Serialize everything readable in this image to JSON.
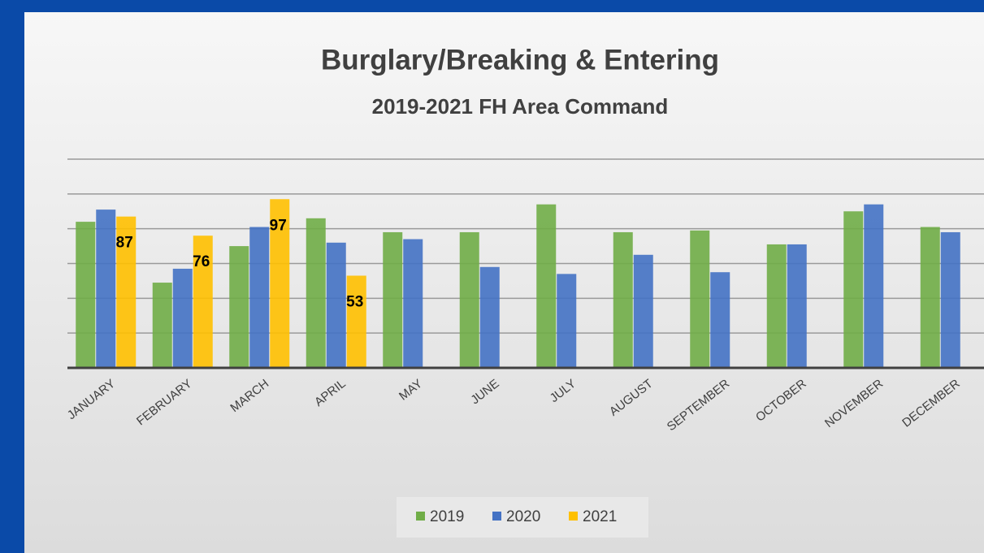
{
  "chart_data": {
    "type": "bar",
    "title": "Burglary/Breaking & Entering",
    "subtitle": "2019-2021 FH Area Command",
    "categories": [
      "JANUARY",
      "FEBRUARY",
      "MARCH",
      "APRIL",
      "MAY",
      "JUNE",
      "JULY",
      "AUGUST",
      "SEPTEMBER",
      "OCTOBER",
      "NOVEMBER",
      "DECEMBER"
    ],
    "series": [
      {
        "name": "2019",
        "color": "#70ad47",
        "values": [
          84,
          49,
          70,
          86,
          78,
          78,
          94,
          78,
          79,
          71,
          90,
          81
        ]
      },
      {
        "name": "2020",
        "color": "#4472c4",
        "values": [
          91,
          57,
          81,
          72,
          74,
          58,
          54,
          65,
          55,
          71,
          94,
          78
        ]
      },
      {
        "name": "2021",
        "color": "#ffc000",
        "values": [
          87,
          76,
          97,
          53,
          null,
          null,
          null,
          null,
          null,
          null,
          null,
          null
        ],
        "show_labels": true
      }
    ],
    "ylim": [
      0,
      120
    ],
    "yticks": [
      0,
      20,
      40,
      60,
      80,
      100,
      120
    ],
    "grid": true,
    "legend": "bottom"
  }
}
